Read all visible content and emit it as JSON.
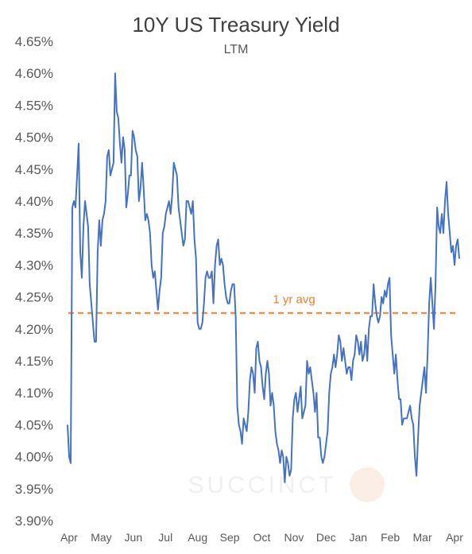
{
  "chart_data": {
    "type": "line",
    "title": "10Y US Treasury Yield",
    "subtitle": "LTM",
    "xlabel": "",
    "ylabel": "",
    "ylim": [
      3.9,
      4.65
    ],
    "ytick_values": [
      3.9,
      3.95,
      4.0,
      4.05,
      4.1,
      4.15,
      4.2,
      4.25,
      4.3,
      4.35,
      4.4,
      4.45,
      4.5,
      4.55,
      4.6,
      4.65
    ],
    "ytick_labels": [
      "3.90%",
      "3.95%",
      "4.00%",
      "4.05%",
      "4.10%",
      "4.15%",
      "4.20%",
      "4.25%",
      "4.30%",
      "4.35%",
      "4.40%",
      "4.45%",
      "4.50%",
      "4.55%",
      "4.60%",
      "4.65%"
    ],
    "x_labels": [
      "Apr",
      "May",
      "Jun",
      "Jul",
      "Aug",
      "Sep",
      "Oct",
      "Nov",
      "Dec",
      "Jan",
      "Feb",
      "Mar",
      "Apr"
    ],
    "avg_value": 4.225,
    "avg_label": "1 yr avg",
    "grid": false,
    "series_color": "#4472C4",
    "avg_color": "#ED7D31",
    "watermark": "SUCCINCT",
    "series": [
      {
        "values": [
          4.05,
          4.0,
          3.99,
          4.39,
          4.4,
          4.39,
          4.44,
          4.49,
          4.32,
          4.28,
          4.36,
          4.4,
          4.38,
          4.36,
          4.27,
          4.24,
          4.21,
          4.18,
          4.18,
          4.32,
          4.37,
          4.33,
          4.37,
          4.38,
          4.4,
          4.47,
          4.48,
          4.44,
          4.45,
          4.46,
          4.6,
          4.54,
          4.53,
          4.49,
          4.46,
          4.5,
          4.48,
          4.39,
          4.41,
          4.44,
          4.44,
          4.51,
          4.5,
          4.48,
          4.47,
          4.4,
          4.42,
          4.46,
          4.42,
          4.37,
          4.38,
          4.37,
          4.35,
          4.3,
          4.28,
          4.29,
          4.26,
          4.23,
          4.26,
          4.28,
          4.35,
          4.36,
          4.38,
          4.39,
          4.4,
          4.38,
          4.41,
          4.46,
          4.45,
          4.44,
          4.39,
          4.37,
          4.35,
          4.33,
          4.34,
          4.4,
          4.4,
          4.39,
          4.38,
          4.4,
          4.34,
          4.31,
          4.21,
          4.2,
          4.2,
          4.21,
          4.24,
          4.28,
          4.29,
          4.28,
          4.28,
          4.29,
          4.24,
          4.3,
          4.33,
          4.34,
          4.3,
          4.31,
          4.3,
          4.27,
          4.25,
          4.24,
          4.24,
          4.26,
          4.27,
          4.27,
          4.22,
          4.08,
          4.05,
          4.04,
          4.02,
          4.06,
          4.05,
          4.04,
          4.07,
          4.12,
          4.14,
          4.13,
          4.1,
          4.17,
          4.18,
          4.15,
          4.14,
          4.11,
          4.09,
          4.13,
          4.15,
          4.13,
          4.08,
          4.1,
          4.08,
          4.04,
          4.02,
          4.01,
          3.99,
          4.01,
          4.0,
          3.96,
          4.0,
          3.99,
          3.97,
          3.98,
          4.06,
          4.09,
          4.1,
          4.07,
          4.09,
          4.11,
          4.06,
          4.07,
          4.08,
          4.15,
          4.13,
          4.14,
          4.12,
          4.1,
          4.07,
          4.1,
          4.03,
          4.03,
          4.0,
          3.99,
          4.0,
          4.02,
          4.04,
          4.1,
          4.13,
          4.14,
          4.16,
          4.14,
          4.16,
          4.19,
          4.18,
          4.15,
          4.17,
          4.15,
          4.13,
          4.14,
          4.14,
          4.12,
          4.15,
          4.16,
          4.19,
          4.18,
          4.16,
          4.18,
          4.15,
          4.16,
          4.19,
          4.15,
          4.2,
          4.22,
          4.22,
          4.27,
          4.24,
          4.22,
          4.21,
          4.22,
          4.25,
          4.24,
          4.26,
          4.25,
          4.27,
          4.28,
          4.19,
          4.16,
          4.13,
          4.16,
          4.12,
          4.09,
          4.09,
          4.05,
          4.06,
          4.06,
          4.06,
          4.07,
          4.08,
          4.06,
          4.05,
          4.0,
          3.97,
          4.03,
          4.08,
          4.1,
          4.12,
          4.14,
          4.1,
          4.16,
          4.24,
          4.28,
          4.24,
          4.2,
          4.27,
          4.39,
          4.36,
          4.35,
          4.38,
          4.35,
          4.4,
          4.43,
          4.38,
          4.35,
          4.32,
          4.33,
          4.3,
          4.33,
          4.34,
          4.31
        ]
      }
    ]
  }
}
